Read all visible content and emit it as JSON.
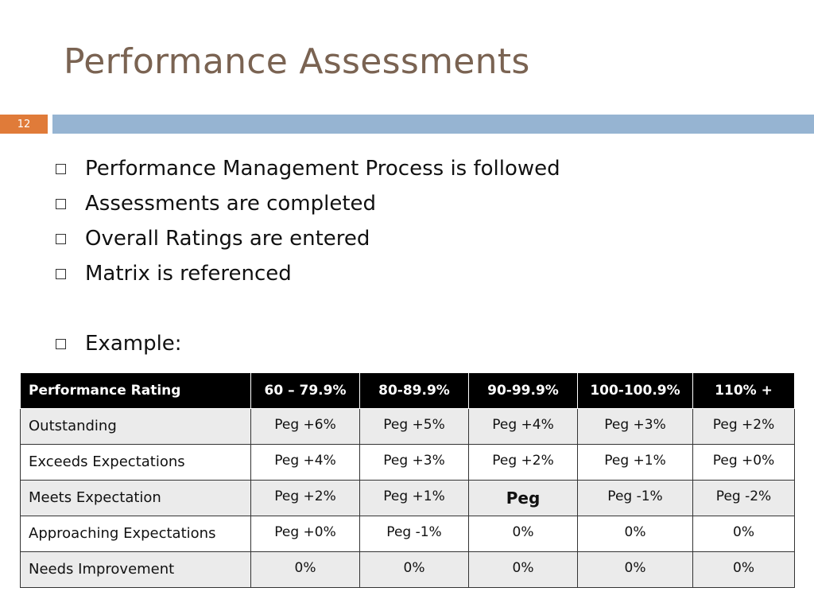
{
  "slide": {
    "title": "Performance Assessments",
    "number": "12"
  },
  "bullets": [
    "Performance Management Process is followed",
    "Assessments are completed",
    "Overall Ratings are entered",
    "Matrix is referenced",
    "Example:"
  ],
  "table": {
    "headers": [
      "Performance Rating",
      "60 – 79.9%",
      "80-89.9%",
      "90-99.9%",
      "100-100.9%",
      "110% +"
    ],
    "rows": [
      [
        "Outstanding",
        "Peg +6%",
        "Peg +5%",
        "Peg +4%",
        "Peg +3%",
        "Peg +2%"
      ],
      [
        "Exceeds Expectations",
        "Peg +4%",
        "Peg +3%",
        "Peg +2%",
        "Peg +1%",
        "Peg +0%"
      ],
      [
        "Meets Expectation",
        "Peg  +2%",
        "Peg +1%",
        "Peg",
        "Peg -1%",
        "Peg -2%"
      ],
      [
        "Approaching Expectations",
        "Peg +0%",
        "Peg -1%",
        "0%",
        "0%",
        "0%"
      ],
      [
        "Needs Improvement",
        "0%",
        "0%",
        "0%",
        "0%",
        "0%"
      ]
    ]
  },
  "colors": {
    "title": "#7a6352",
    "slide_number_bg": "#e07b39",
    "accent_bar": "#96b4d2",
    "header_bg": "#000000",
    "row_alt_bg": "#ebebeb"
  }
}
